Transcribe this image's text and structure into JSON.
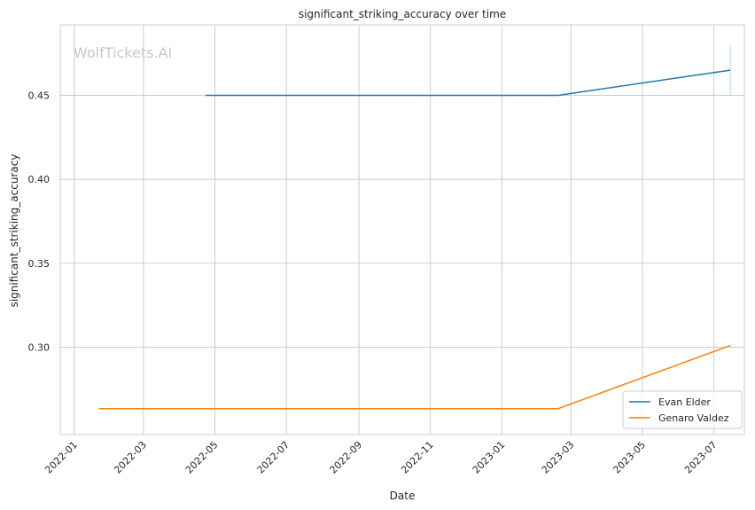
{
  "chart_data": {
    "type": "line",
    "title": "significant_striking_accuracy over time",
    "xlabel": "Date",
    "ylabel": "significant_striking_accuracy",
    "watermark": "WolfTickets.AI",
    "x_ticks": [
      "2022-01",
      "2022-03",
      "2022-05",
      "2022-07",
      "2022-09",
      "2022-11",
      "2023-01",
      "2023-03",
      "2023-05",
      "2023-07"
    ],
    "y_ticks": [
      "0.30",
      "0.35",
      "0.40",
      "0.45"
    ],
    "xlim": [
      "2021-12-20",
      "2023-07-27"
    ],
    "ylim": [
      0.248,
      0.492
    ],
    "grid": true,
    "legend_position": "lower-right",
    "series": [
      {
        "name": "Evan Elder",
        "color": "#1f77b4",
        "points": [
          {
            "x": "2022-04-23",
            "y": 0.45
          },
          {
            "x": "2023-02-18",
            "y": 0.45
          },
          {
            "x": "2023-07-15",
            "y": 0.465
          }
        ]
      },
      {
        "name": "Genaro Valdez",
        "color": "#ff7f0e",
        "points": [
          {
            "x": "2022-01-22",
            "y": 0.2635
          },
          {
            "x": "2023-02-18",
            "y": 0.2635
          },
          {
            "x": "2023-07-15",
            "y": 0.301
          }
        ]
      }
    ],
    "error_bar": {
      "x": "2023-07-15",
      "y_low": 0.45,
      "y_high": 0.48,
      "color": "#a8dde5"
    }
  }
}
